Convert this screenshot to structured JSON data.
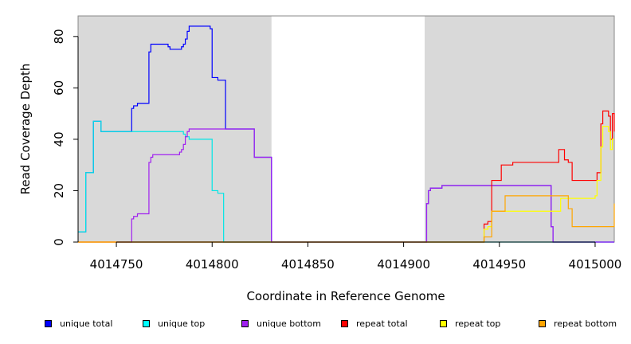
{
  "chart_data": {
    "type": "line",
    "xlabel": "Coordinate in Reference Genome",
    "ylabel": "Read Coverage Depth",
    "xlim": [
      4014730,
      4015010
    ],
    "ylim": [
      0,
      88
    ],
    "xticks": [
      4014750,
      4014800,
      4014850,
      4014900,
      4014950,
      4015000
    ],
    "xtick_labels": [
      "4014750",
      "4014800",
      "4014850",
      "4014900",
      "4014950",
      "4015000"
    ],
    "yticks": [
      0,
      20,
      40,
      60,
      80
    ],
    "ytick_labels": [
      "0",
      "20",
      "40",
      "60",
      "80"
    ],
    "shaded_regions": [
      [
        4014730,
        4014831
      ],
      [
        4014911,
        4015010
      ]
    ],
    "step": true,
    "series": [
      {
        "name": "unique total",
        "color": "#0000ff",
        "x": [
          4014730,
          4014734,
          4014738,
          4014742,
          4014743,
          4014746,
          4014758,
          4014759,
          4014761,
          4014767,
          4014768,
          4014769,
          4014776,
          4014777,
          4014778,
          4014783,
          4014784,
          4014785,
          4014786,
          4014787,
          4014788,
          4014799,
          4014800,
          4014803,
          4014804,
          4014806,
          4014807,
          4014821,
          4014822,
          4014829,
          4014830,
          4014831,
          4014911,
          4014912,
          4014913,
          4014914,
          4014916,
          4014917,
          4014918,
          4014919,
          4014920,
          4014921,
          4014922,
          4014923,
          4014924,
          4014926,
          4014928,
          4014930,
          4014932,
          4014934,
          4014936,
          4014938,
          4014940,
          4014942,
          4014944,
          4014946,
          4014948,
          4014950,
          4014952,
          4014954,
          4014956,
          4014958,
          4014960,
          4014962,
          4014964,
          4014966,
          4014968,
          4014970,
          4014972,
          4014974,
          4014976,
          4014977,
          4014978,
          4014979,
          4014980,
          4014981,
          4014982,
          4014983,
          4014984,
          4014985,
          4015010
        ],
        "y": [
          4,
          27,
          47,
          43,
          43,
          43,
          52,
          53,
          54,
          74,
          77,
          77,
          77,
          76,
          75,
          75,
          76,
          77,
          79,
          82,
          84,
          83,
          64,
          63,
          63,
          63,
          44,
          44,
          33,
          33,
          33,
          0,
          0,
          15,
          20,
          21,
          21,
          21,
          21,
          21,
          22,
          22,
          22,
          22,
          22,
          22,
          22,
          22,
          22,
          22,
          22,
          22,
          22,
          22,
          22,
          22,
          22,
          22,
          22,
          22,
          22,
          22,
          22,
          22,
          22,
          22,
          22,
          22,
          22,
          22,
          22,
          6,
          0,
          0,
          0,
          0,
          0,
          0,
          0,
          0,
          0
        ]
      },
      {
        "name": "unique top",
        "color": "#00e5e5",
        "x": [
          4014730,
          4014734,
          4014738,
          4014742,
          4014743,
          4014746,
          4014758,
          4014759,
          4014761,
          4014767,
          4014768,
          4014769,
          4014776,
          4014777,
          4014778,
          4014783,
          4014784,
          4014785,
          4014786,
          4014787,
          4014788,
          4014799,
          4014800,
          4014803,
          4014804,
          4014806,
          4014831,
          4014911,
          4014942,
          4014944,
          4014946,
          4014976,
          4014977,
          4015010
        ],
        "y": [
          4,
          27,
          47,
          43,
          43,
          43,
          43,
          43,
          43,
          43,
          43,
          43,
          43,
          43,
          43,
          43,
          43,
          42,
          41,
          41,
          40,
          40,
          20,
          19,
          19,
          0,
          0,
          0,
          0,
          0,
          0,
          0,
          0,
          0
        ]
      },
      {
        "name": "unique bottom",
        "color": "#a020f0",
        "x": [
          4014730,
          4014758,
          4014759,
          4014761,
          4014767,
          4014768,
          4014769,
          4014776,
          4014777,
          4014778,
          4014783,
          4014784,
          4014785,
          4014786,
          4014787,
          4014788,
          4014799,
          4014800,
          4014803,
          4014804,
          4014806,
          4014807,
          4014821,
          4014822,
          4014829,
          4014830,
          4014831,
          4014911,
          4014912,
          4014913,
          4014914,
          4014916,
          4014920,
          4014930,
          4014940,
          4014950,
          4014960,
          4014970,
          4014976,
          4014977,
          4014978,
          4015010
        ],
        "y": [
          0,
          9,
          10,
          11,
          31,
          33,
          34,
          34,
          34,
          34,
          35,
          36,
          38,
          41,
          43,
          44,
          44,
          44,
          44,
          44,
          44,
          44,
          44,
          33,
          33,
          33,
          0,
          0,
          15,
          20,
          21,
          21,
          22,
          22,
          22,
          22,
          22,
          22,
          22,
          6,
          0,
          0
        ]
      },
      {
        "name": "repeat total",
        "color": "#ff0000",
        "x": [
          4014730,
          4014942,
          4014944,
          4014946,
          4014951,
          4014953,
          4014955,
          4014957,
          4014961,
          4014964,
          4014981,
          4014982,
          4014984,
          4014986,
          4014988,
          4015000,
          4015001,
          4015003,
          4015004,
          4015005,
          4015007,
          4015008,
          4015009,
          4015010
        ],
        "y": [
          0,
          7,
          8,
          24,
          30,
          30,
          30,
          31,
          31,
          31,
          36,
          36,
          32,
          31,
          24,
          24,
          27,
          46,
          51,
          51,
          49,
          40,
          50,
          43
        ]
      },
      {
        "name": "repeat top",
        "color": "#ffff00",
        "x": [
          4014730,
          4014942,
          4014944,
          4014946,
          4014951,
          4014953,
          4014955,
          4014957,
          4014961,
          4014964,
          4014981,
          4014982,
          4014984,
          4014986,
          4014988,
          4015000,
          4015001,
          4015003,
          4015004,
          4015005,
          4015007,
          4015008,
          4015009,
          4015010
        ],
        "y": [
          0,
          5,
          6,
          12,
          12,
          12,
          12,
          12,
          12,
          12,
          12,
          17,
          17,
          17,
          17,
          18,
          24,
          37,
          45,
          45,
          43,
          36,
          40,
          40
        ]
      },
      {
        "name": "repeat bottom",
        "color": "#ffa500",
        "x": [
          4014730,
          4014942,
          4014944,
          4014946,
          4014951,
          4014953,
          4014955,
          4014957,
          4014961,
          4014964,
          4014981,
          4014982,
          4014984,
          4014986,
          4014988,
          4015000,
          4015001,
          4015003,
          4015004,
          4015005,
          4015007,
          4015008,
          4015009,
          4015010
        ],
        "y": [
          0,
          2,
          2,
          12,
          12,
          18,
          18,
          18,
          18,
          18,
          18,
          18,
          18,
          13,
          6,
          6,
          6,
          6,
          6,
          6,
          6,
          6,
          6,
          15
        ]
      }
    ]
  },
  "legend": [
    {
      "label": "unique total",
      "color": "#0000ff"
    },
    {
      "label": "unique top",
      "color": "#00ffff"
    },
    {
      "label": "unique bottom",
      "color": "#a020f0"
    },
    {
      "label": "repeat total",
      "color": "#ff0000"
    },
    {
      "label": "repeat top",
      "color": "#ffff00"
    },
    {
      "label": "repeat bottom",
      "color": "#ffa500"
    }
  ]
}
